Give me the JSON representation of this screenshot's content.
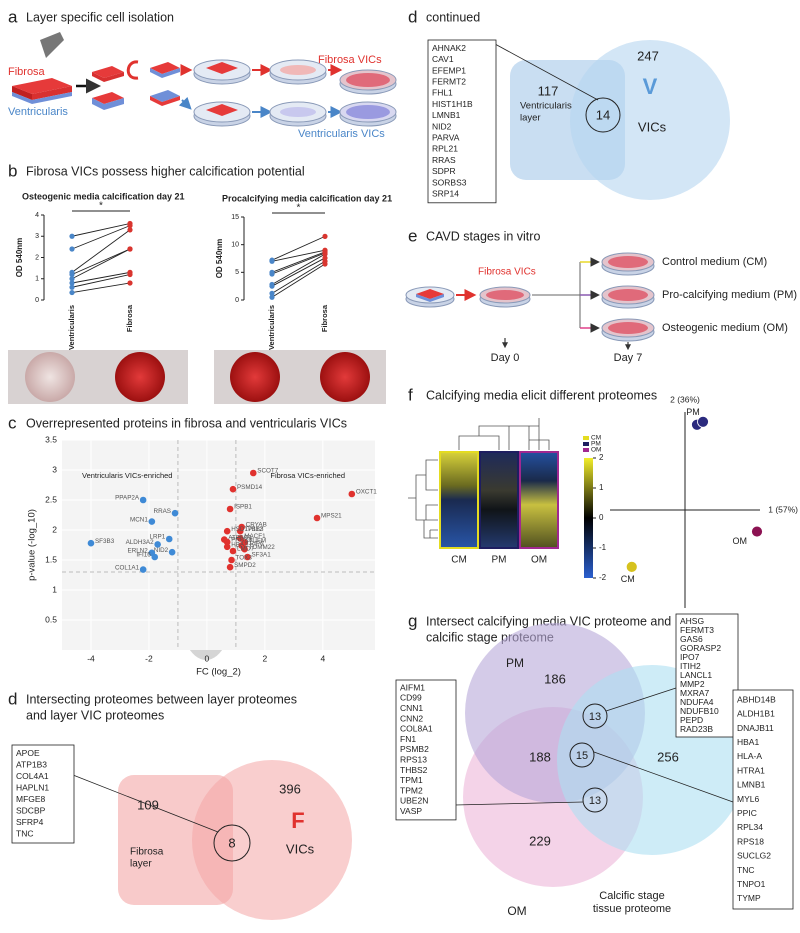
{
  "panel_a": {
    "letter": "a",
    "title": "Layer specific cell isolation",
    "fibrosa": "Fibrosa",
    "ventricularis": "Ventricularis",
    "fibrosa_vics": "Fibrosa VICs",
    "ventricularis_vics": "Ventricularis VICs"
  },
  "panel_b": {
    "letter": "b",
    "title": "Fibrosa VICs possess higher calcification potential"
  },
  "panel_c": {
    "letter": "c",
    "title": "Overrepresented proteins in fibrosa and ventricularis VICs"
  },
  "chart_data": [
    {
      "type": "paired",
      "title": "Osteogenic media calcification day 21",
      "ylabel": "OD 540nm",
      "categories": [
        "Ventricularis",
        "Fibrosa"
      ],
      "colors": [
        "#4a86c8",
        "#d9352f"
      ],
      "pairs": [
        [
          3.0,
          3.6
        ],
        [
          2.4,
          3.5
        ],
        [
          1.3,
          3.3
        ],
        [
          1.2,
          2.4
        ],
        [
          1.0,
          2.4
        ],
        [
          0.8,
          1.3
        ],
        [
          0.6,
          1.2
        ],
        [
          0.35,
          0.8
        ]
      ],
      "ylim": [
        0,
        4
      ],
      "yticks": [
        0,
        1,
        2,
        3,
        4
      ],
      "annotation": "*"
    },
    {
      "type": "paired",
      "title": "Procalcifying media calcification day 21",
      "ylabel": "OD 540nm",
      "categories": [
        "Ventricularis",
        "Fibrosa"
      ],
      "colors": [
        "#4a86c8",
        "#d9352f"
      ],
      "pairs": [
        [
          7.2,
          11.5
        ],
        [
          7.0,
          9.0
        ],
        [
          5.0,
          8.7
        ],
        [
          4.7,
          8.5
        ],
        [
          2.8,
          8.3
        ],
        [
          2.5,
          7.6
        ],
        [
          1.2,
          7.0
        ],
        [
          0.5,
          6.5
        ]
      ],
      "ylim": [
        0,
        15
      ],
      "yticks": [
        0,
        5,
        10,
        15
      ],
      "annotation": "*"
    },
    {
      "type": "scatter",
      "xlabel": "FC (log_2)",
      "ylabel": "p-value (-log_10)",
      "xlim": [
        -5,
        5.8
      ],
      "ylim": [
        0,
        3.5
      ],
      "xticks": [
        -4,
        -2,
        0,
        2,
        4
      ],
      "yticks": [
        0.5,
        1,
        1.5,
        2,
        2.5,
        3,
        3.5
      ],
      "grid": true,
      "thresholds": {
        "x": [
          -1,
          1
        ],
        "y": 1.3
      },
      "annotations": [
        "Ventricularis VICs-enriched",
        "Fibrosa VICs-enriched"
      ],
      "series": [
        {
          "color": "#3f8ad6",
          "side": "left",
          "labels": [
            "PPAP2A",
            "RRAS",
            "MCN1",
            "SF3B3",
            "LRP1",
            "ALDH3A2",
            "NID2",
            "ERLN2",
            "IFI16",
            "COL1A1"
          ],
          "x": [
            -2.2,
            -1.1,
            -1.9,
            -4.0,
            -1.3,
            -1.7,
            -1.2,
            -1.9,
            -1.8,
            -2.2
          ],
          "y": [
            2.5,
            2.28,
            2.14,
            1.78,
            1.85,
            1.76,
            1.63,
            1.62,
            1.55,
            1.34
          ]
        },
        {
          "color": "#e0322e",
          "side": "right",
          "labels": [
            "SCOT7",
            "OXCT1",
            "MPS21",
            "PSMD14",
            "ISPB1",
            "CRYAB",
            "TP1B3",
            "HSD17B12",
            "MACF1",
            "ATP5C1",
            "TUFM",
            "PRDX3",
            "TRIP6",
            "HBA1",
            "TOMM22",
            "LMO7",
            "SF3A1",
            "TOX3",
            "SMPD2"
          ],
          "x": [
            1.6,
            5.0,
            3.8,
            0.9,
            0.8,
            1.2,
            1.15,
            0.7,
            1.15,
            0.6,
            1.3,
            0.7,
            1.2,
            0.7,
            1.3,
            0.9,
            1.4,
            0.85,
            0.8
          ],
          "y": [
            2.95,
            2.6,
            2.2,
            2.68,
            2.35,
            2.05,
            1.98,
            1.98,
            1.86,
            1.84,
            1.79,
            1.8,
            1.74,
            1.72,
            1.68,
            1.65,
            1.55,
            1.5,
            1.38
          ]
        }
      ]
    },
    {
      "type": "scatter",
      "axes": "cross",
      "xlabel": "1 (57%)",
      "ylabel": "2 (36%)",
      "xlim": [
        -1,
        1
      ],
      "ylim": [
        -1,
        1
      ],
      "series": [
        {
          "name": "PM",
          "color": "#2b2a7e",
          "x": [
            0.16,
            0.24
          ],
          "y": [
            0.87,
            0.9
          ]
        },
        {
          "name": "OM",
          "color": "#8c1252",
          "x": [
            0.96
          ],
          "y": [
            -0.22
          ]
        },
        {
          "name": "CM",
          "color": "#d6c21e",
          "x": [
            -0.71
          ],
          "y": [
            -0.58
          ]
        }
      ]
    }
  ],
  "panel_d": {
    "letter": "d",
    "title": [
      "Intersecting proteomes between layer proteomes",
      "and layer VIC proteomes"
    ],
    "genes": [
      "APOE",
      "ATP1B3",
      "COL4A1",
      "HAPLN1",
      "MFGE8",
      "SDCBP",
      "SFRP4",
      "TNC"
    ],
    "layer_count": "109",
    "layer_label": [
      "Fibrosa",
      "layer"
    ],
    "overlap": "8",
    "vic_count": "396",
    "vic_letter": "F",
    "vic_label": "VICs"
  },
  "panel_d2": {
    "letter": "d",
    "title": "continued",
    "genes": [
      "AHNAK2",
      "CAV1",
      "EFEMP1",
      "FERMT2",
      "FHL1",
      "HIST1H1B",
      "LMNB1",
      "NID2",
      "PARVA",
      "RPL21",
      "RRAS",
      "SDPR",
      "SORBS3",
      "SRP14"
    ],
    "layer_count": "117",
    "layer_label": [
      "Ventricularis",
      "layer"
    ],
    "overlap": "14",
    "vic_count": "247",
    "vic_letter": "V",
    "vic_label": "VICs"
  },
  "panel_e": {
    "letter": "e",
    "title": "CAVD stages in vitro",
    "vics": "Fibrosa VICs",
    "media": [
      "Control medium (CM)",
      "Pro-calcifying medium (PM)",
      "Osteogenic medium (OM)"
    ],
    "day0": "Day 0",
    "day7": "Day 7"
  },
  "panel_f": {
    "letter": "f",
    "title": "Calcifying media elicit different proteomes",
    "groups": [
      "CM",
      "PM",
      "OM"
    ],
    "legend": [
      "CM",
      "PM",
      "OM"
    ],
    "colorbar": {
      "lim": [
        -2,
        2
      ],
      "ticks": [
        2,
        1,
        0,
        -1,
        -2
      ]
    }
  },
  "panel_g": {
    "letter": "g",
    "title": [
      "Intersect calcifying media VIC proteome and",
      "calcific stage proteome"
    ],
    "pm": "PM",
    "om": "OM",
    "tissue": [
      "Calcific stage",
      "tissue proteome"
    ],
    "counts": {
      "pm_only": "186",
      "pm_om": "188",
      "om_only": "229",
      "tissue_only": "256",
      "pm_tissue": "13",
      "all": "15",
      "om_tissue": "13"
    },
    "genes_pm_tissue": [
      "AHSG",
      "FERMT3",
      "GAS6",
      "GORASP2",
      "IPO7",
      "ITIH2",
      "LANCL1",
      "MMP2",
      "MXRA7",
      "NDUFA4",
      "NDUFB10",
      "PEPD",
      "RAD23B"
    ],
    "genes_all": [
      "ABHD14B",
      "ALDH1B1",
      "DNAJB11",
      "HBA1",
      "HLA-A",
      "HTRA1",
      "LMNB1",
      "MYL6",
      "PPIC",
      "RPL34",
      "RPS18",
      "SUCLG2",
      "TNC",
      "TNPO1",
      "TYMP"
    ],
    "genes_om_tissue": [
      "AIFM1",
      "CD99",
      "CNN1",
      "CNN2",
      "COL8A1",
      "FN1",
      "PSMB2",
      "RPS13",
      "THBS2",
      "TPM1",
      "TPM2",
      "UBE2N",
      "VASP"
    ]
  }
}
